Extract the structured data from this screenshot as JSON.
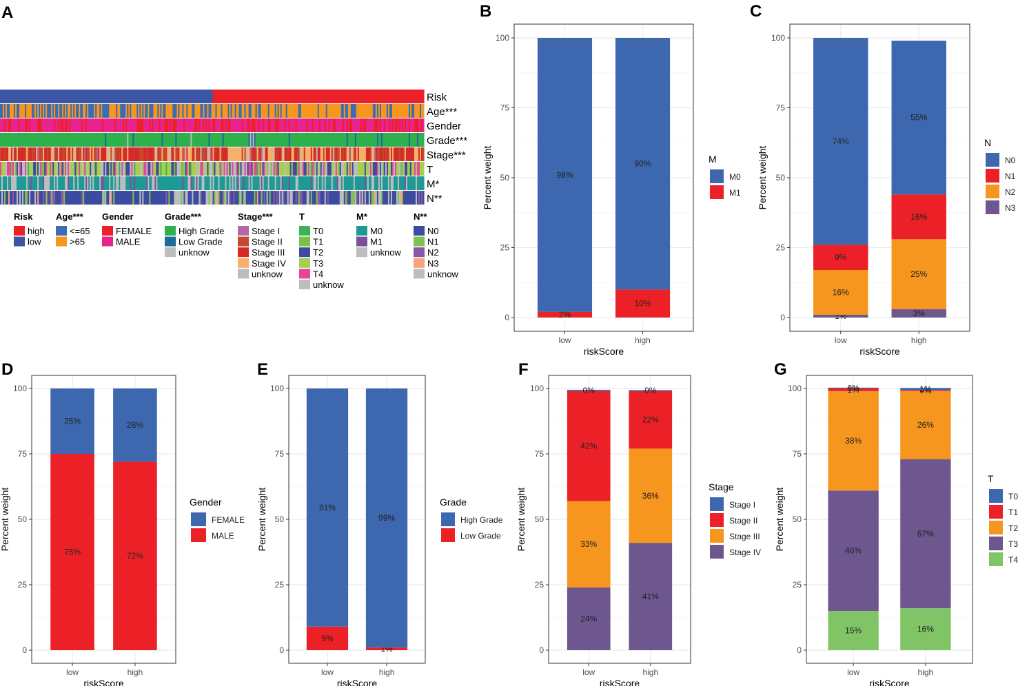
{
  "colors": {
    "blue": "#3D68B0",
    "red": "#EC2127",
    "orange": "#F6961E",
    "purple": "#6E568F",
    "green": "#80C565",
    "grid": "#EBEBEB",
    "panel_border": "#333333",
    "heat": {
      "risk_low": "#3C55A5",
      "risk_high": "#EC2127",
      "age_young": "#3C6CB4",
      "age_old": "#F6961E",
      "female": "#EC2127",
      "male": "#E8238E",
      "high_grade": "#2EB04D",
      "low_grade": "#1D6A9B",
      "stage1": "#B368A8",
      "stage2": "#C8472F",
      "stage3": "#D42B28",
      "stage4": "#F6B06B",
      "t0": "#3BB25B",
      "t1": "#7CBF44",
      "t2": "#3E4B9F",
      "t3": "#A6CF50",
      "t4": "#E6459A",
      "m0": "#1E9A96",
      "m1": "#7C4E9E",
      "n0": "#3C4BA0",
      "n1": "#7DC350",
      "n2": "#8A58A6",
      "n3": "#F6A27C",
      "unknow": "#BDBDBD"
    }
  },
  "panel_labels": {
    "A": "A",
    "B": "B",
    "C": "C",
    "D": "D",
    "E": "E",
    "F": "F",
    "G": "G"
  },
  "heatmap": {
    "rows": [
      "Risk",
      "Age***",
      "Gender",
      "Grade***",
      "Stage***",
      "T",
      "M*",
      "N**"
    ],
    "legend": [
      {
        "title": "Risk",
        "items": [
          {
            "label": "high",
            "color_key": "risk_high"
          },
          {
            "label": "low",
            "color_key": "risk_low"
          }
        ]
      },
      {
        "title": "Age***",
        "items": [
          {
            "label": "<=65",
            "color_key": "age_young"
          },
          {
            "label": ">65",
            "color_key": "age_old"
          }
        ]
      },
      {
        "title": "Gender",
        "items": [
          {
            "label": "FEMALE",
            "color_key": "female"
          },
          {
            "label": "MALE",
            "color_key": "male"
          }
        ]
      },
      {
        "title": "Grade***",
        "items": [
          {
            "label": "High Grade",
            "color_key": "high_grade"
          },
          {
            "label": "Low Grade",
            "color_key": "low_grade"
          },
          {
            "label": "unknow",
            "color_key": "unknow"
          }
        ]
      },
      {
        "title": "Stage***",
        "items": [
          {
            "label": "Stage I",
            "color_key": "stage1"
          },
          {
            "label": "Stage II",
            "color_key": "stage2"
          },
          {
            "label": "Stage III",
            "color_key": "stage3"
          },
          {
            "label": "Stage IV",
            "color_key": "stage4"
          },
          {
            "label": "unknow",
            "color_key": "unknow"
          }
        ]
      },
      {
        "title": "T",
        "items": [
          {
            "label": "T0",
            "color_key": "t0"
          },
          {
            "label": "T1",
            "color_key": "t1"
          },
          {
            "label": "T2",
            "color_key": "t2"
          },
          {
            "label": "T3",
            "color_key": "t3"
          },
          {
            "label": "T4",
            "color_key": "t4"
          },
          {
            "label": "unknow",
            "color_key": "unknow"
          }
        ]
      },
      {
        "title": "M*",
        "items": [
          {
            "label": "M0",
            "color_key": "m0"
          },
          {
            "label": "M1",
            "color_key": "m1"
          },
          {
            "label": "unknow",
            "color_key": "unknow"
          }
        ]
      },
      {
        "title": "N**",
        "items": [
          {
            "label": "N0",
            "color_key": "n0"
          },
          {
            "label": "N1",
            "color_key": "n1"
          },
          {
            "label": "N2",
            "color_key": "n2"
          },
          {
            "label": "N3",
            "color_key": "n3"
          },
          {
            "label": "unknow",
            "color_key": "unknow"
          }
        ]
      }
    ]
  },
  "chart_data": [
    {
      "panel": "B",
      "type": "bar",
      "stacked": true,
      "categories": [
        "low",
        "high"
      ],
      "xlabel": "riskScore",
      "ylabel": "Percent weight",
      "ylim": [
        0,
        100
      ],
      "yticks": [
        0,
        25,
        50,
        75,
        100
      ],
      "legend_title": "M",
      "series": [
        {
          "name": "M0",
          "color": "#3D68B0",
          "values": [
            98,
            90
          ],
          "labels": [
            "98%",
            "90%"
          ]
        },
        {
          "name": "M1",
          "color": "#EC2127",
          "values": [
            2,
            10
          ],
          "labels": [
            "2%",
            "10%"
          ]
        }
      ]
    },
    {
      "panel": "C",
      "type": "bar",
      "stacked": true,
      "categories": [
        "low",
        "high"
      ],
      "xlabel": "riskScore",
      "ylabel": "Percent weight",
      "ylim": [
        0,
        100
      ],
      "yticks": [
        0,
        25,
        50,
        75,
        100
      ],
      "legend_title": "N",
      "series": [
        {
          "name": "N0",
          "color": "#3D68B0",
          "values": [
            74,
            55
          ],
          "labels": [
            "74%",
            "55%"
          ]
        },
        {
          "name": "N1",
          "color": "#EC2127",
          "values": [
            9,
            16
          ],
          "labels": [
            "9%",
            "16%"
          ]
        },
        {
          "name": "N2",
          "color": "#F6961E",
          "values": [
            16,
            25
          ],
          "labels": [
            "16%",
            "25%"
          ]
        },
        {
          "name": "N3",
          "color": "#6E568F",
          "values": [
            1,
            3
          ],
          "labels": [
            "1%",
            "3%"
          ]
        }
      ]
    },
    {
      "panel": "D",
      "type": "bar",
      "stacked": true,
      "categories": [
        "low",
        "high"
      ],
      "xlabel": "riskScore",
      "ylabel": "Percent weight",
      "ylim": [
        0,
        100
      ],
      "yticks": [
        0,
        25,
        50,
        75,
        100
      ],
      "legend_title": "Gender",
      "series": [
        {
          "name": "FEMALE",
          "color": "#3D68B0",
          "values": [
            25,
            28
          ],
          "labels": [
            "25%",
            "28%"
          ]
        },
        {
          "name": "MALE",
          "color": "#EC2127",
          "values": [
            75,
            72
          ],
          "labels": [
            "75%",
            "72%"
          ]
        }
      ]
    },
    {
      "panel": "E",
      "type": "bar",
      "stacked": true,
      "categories": [
        "low",
        "high"
      ],
      "xlabel": "riskScore",
      "ylabel": "Percent weight",
      "ylim": [
        0,
        100
      ],
      "yticks": [
        0,
        25,
        50,
        75,
        100
      ],
      "legend_title": "Grade",
      "series": [
        {
          "name": "High Grade",
          "color": "#3D68B0",
          "values": [
            91,
            99
          ],
          "labels": [
            "91%",
            "99%"
          ]
        },
        {
          "name": "Low Grade",
          "color": "#EC2127",
          "values": [
            9,
            1
          ],
          "labels": [
            "9%",
            "1%"
          ]
        }
      ]
    },
    {
      "panel": "F",
      "type": "bar",
      "stacked": true,
      "categories": [
        "low",
        "high"
      ],
      "xlabel": "riskScore",
      "ylabel": "Percent weight",
      "ylim": [
        0,
        100
      ],
      "yticks": [
        0,
        25,
        50,
        75,
        100
      ],
      "legend_title": "Stage",
      "series": [
        {
          "name": "Stage I",
          "color": "#3D68B0",
          "values": [
            0.5,
            0.4
          ],
          "labels": [
            "0%",
            "0%"
          ]
        },
        {
          "name": "Stage II",
          "color": "#EC2127",
          "values": [
            42,
            22
          ],
          "labels": [
            "42%",
            "22%"
          ]
        },
        {
          "name": "Stage III",
          "color": "#F6961E",
          "values": [
            33,
            36
          ],
          "labels": [
            "33%",
            "36%"
          ]
        },
        {
          "name": "Stage IV",
          "color": "#6E568F",
          "values": [
            24,
            41
          ],
          "labels": [
            "24%",
            "41%"
          ]
        }
      ]
    },
    {
      "panel": "G",
      "type": "bar",
      "stacked": true,
      "categories": [
        "low",
        "high"
      ],
      "xlabel": "riskScore",
      "ylabel": "Percent weight",
      "ylim": [
        0,
        100
      ],
      "yticks": [
        0,
        25,
        50,
        75,
        100
      ],
      "legend_title": "T",
      "series": [
        {
          "name": "T0",
          "color": "#3D68B0",
          "values": [
            0.3,
            0.8
          ],
          "labels": [
            "0%",
            "1%"
          ]
        },
        {
          "name": "T1",
          "color": "#EC2127",
          "values": [
            1,
            0.4
          ],
          "labels": [
            "1%",
            "0%"
          ]
        },
        {
          "name": "T2",
          "color": "#F6961E",
          "values": [
            38,
            26
          ],
          "labels": [
            "38%",
            "26%"
          ]
        },
        {
          "name": "T3",
          "color": "#6E568F",
          "values": [
            46,
            57
          ],
          "labels": [
            "46%",
            "57%"
          ]
        },
        {
          "name": "T4",
          "color": "#80C565",
          "values": [
            15,
            16
          ],
          "labels": [
            "15%",
            "16%"
          ]
        }
      ]
    }
  ]
}
